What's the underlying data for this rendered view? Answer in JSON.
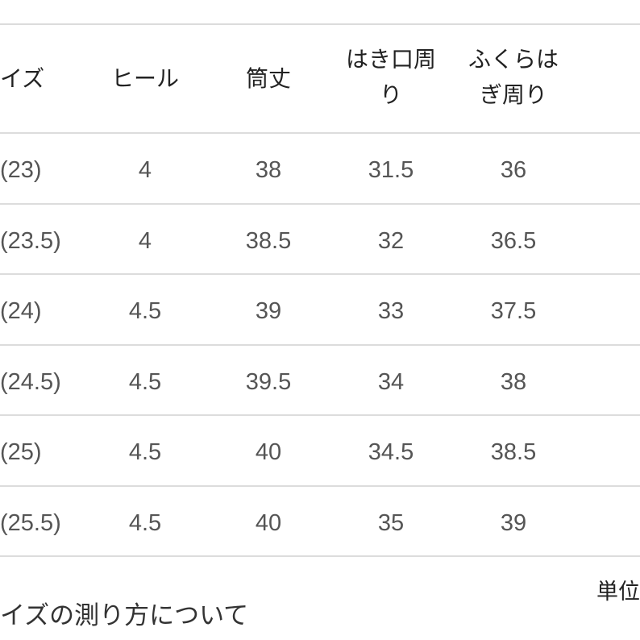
{
  "table": {
    "headers": [
      "イズ",
      "ヒール",
      "筒丈",
      "はき口周\nり",
      "ふくらは\nぎ周り"
    ],
    "rows": [
      [
        "(23)",
        "4",
        "38",
        "31.5",
        "36"
      ],
      [
        "(23.5)",
        "4",
        "38.5",
        "32",
        "36.5"
      ],
      [
        "(24)",
        "4.5",
        "39",
        "33",
        "37.5"
      ],
      [
        "(24.5)",
        "4.5",
        "39.5",
        "34",
        "38"
      ],
      [
        "(25)",
        "4.5",
        "40",
        "34.5",
        "38.5"
      ],
      [
        "(25.5)",
        "4.5",
        "40",
        "35",
        "39"
      ]
    ]
  },
  "unit_label": "単位",
  "measure_link": "イズの測り方について"
}
